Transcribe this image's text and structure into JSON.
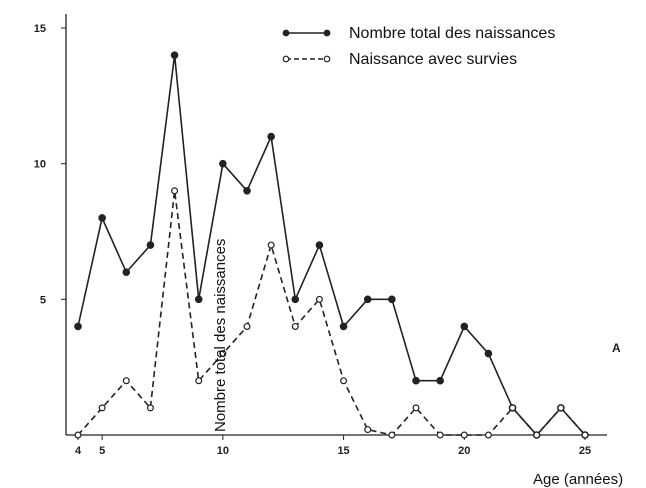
{
  "chart_data": {
    "type": "line",
    "title": "",
    "xlabel": "Age (années)",
    "ylabel": "Nombre total des naissances",
    "xlim": [
      4,
      25
    ],
    "ylim": [
      0,
      15
    ],
    "x_ticks": [
      4,
      5,
      10,
      15,
      20,
      25
    ],
    "y_ticks": [
      5,
      10,
      15
    ],
    "grid": false,
    "legend_position": "top-right",
    "annotation": "A",
    "series": [
      {
        "name": "Nombre total des naissances",
        "marker": "filled-circle",
        "line_style": "solid",
        "x": [
          4,
          5,
          6,
          7,
          8,
          9,
          10,
          11,
          12,
          13,
          14,
          15,
          16,
          17,
          18,
          19,
          20,
          21,
          22,
          23,
          24,
          25
        ],
        "y": [
          4,
          8,
          6,
          7,
          14,
          5,
          10,
          9,
          11,
          5,
          7,
          4,
          5,
          5,
          2,
          2,
          4,
          3,
          1,
          0,
          1,
          0
        ]
      },
      {
        "name": "Naissance avec survies",
        "marker": "open-circle",
        "line_style": "dashed",
        "x": [
          4,
          5,
          6,
          7,
          8,
          9,
          10,
          11,
          12,
          13,
          14,
          15,
          16,
          17,
          18,
          19,
          20,
          21,
          22,
          23,
          24,
          25
        ],
        "y": [
          0,
          1,
          2,
          1,
          9,
          2,
          3,
          4,
          7,
          4,
          5,
          2,
          0.2,
          0,
          1,
          0,
          0,
          0,
          1,
          0,
          1,
          0
        ]
      }
    ]
  }
}
